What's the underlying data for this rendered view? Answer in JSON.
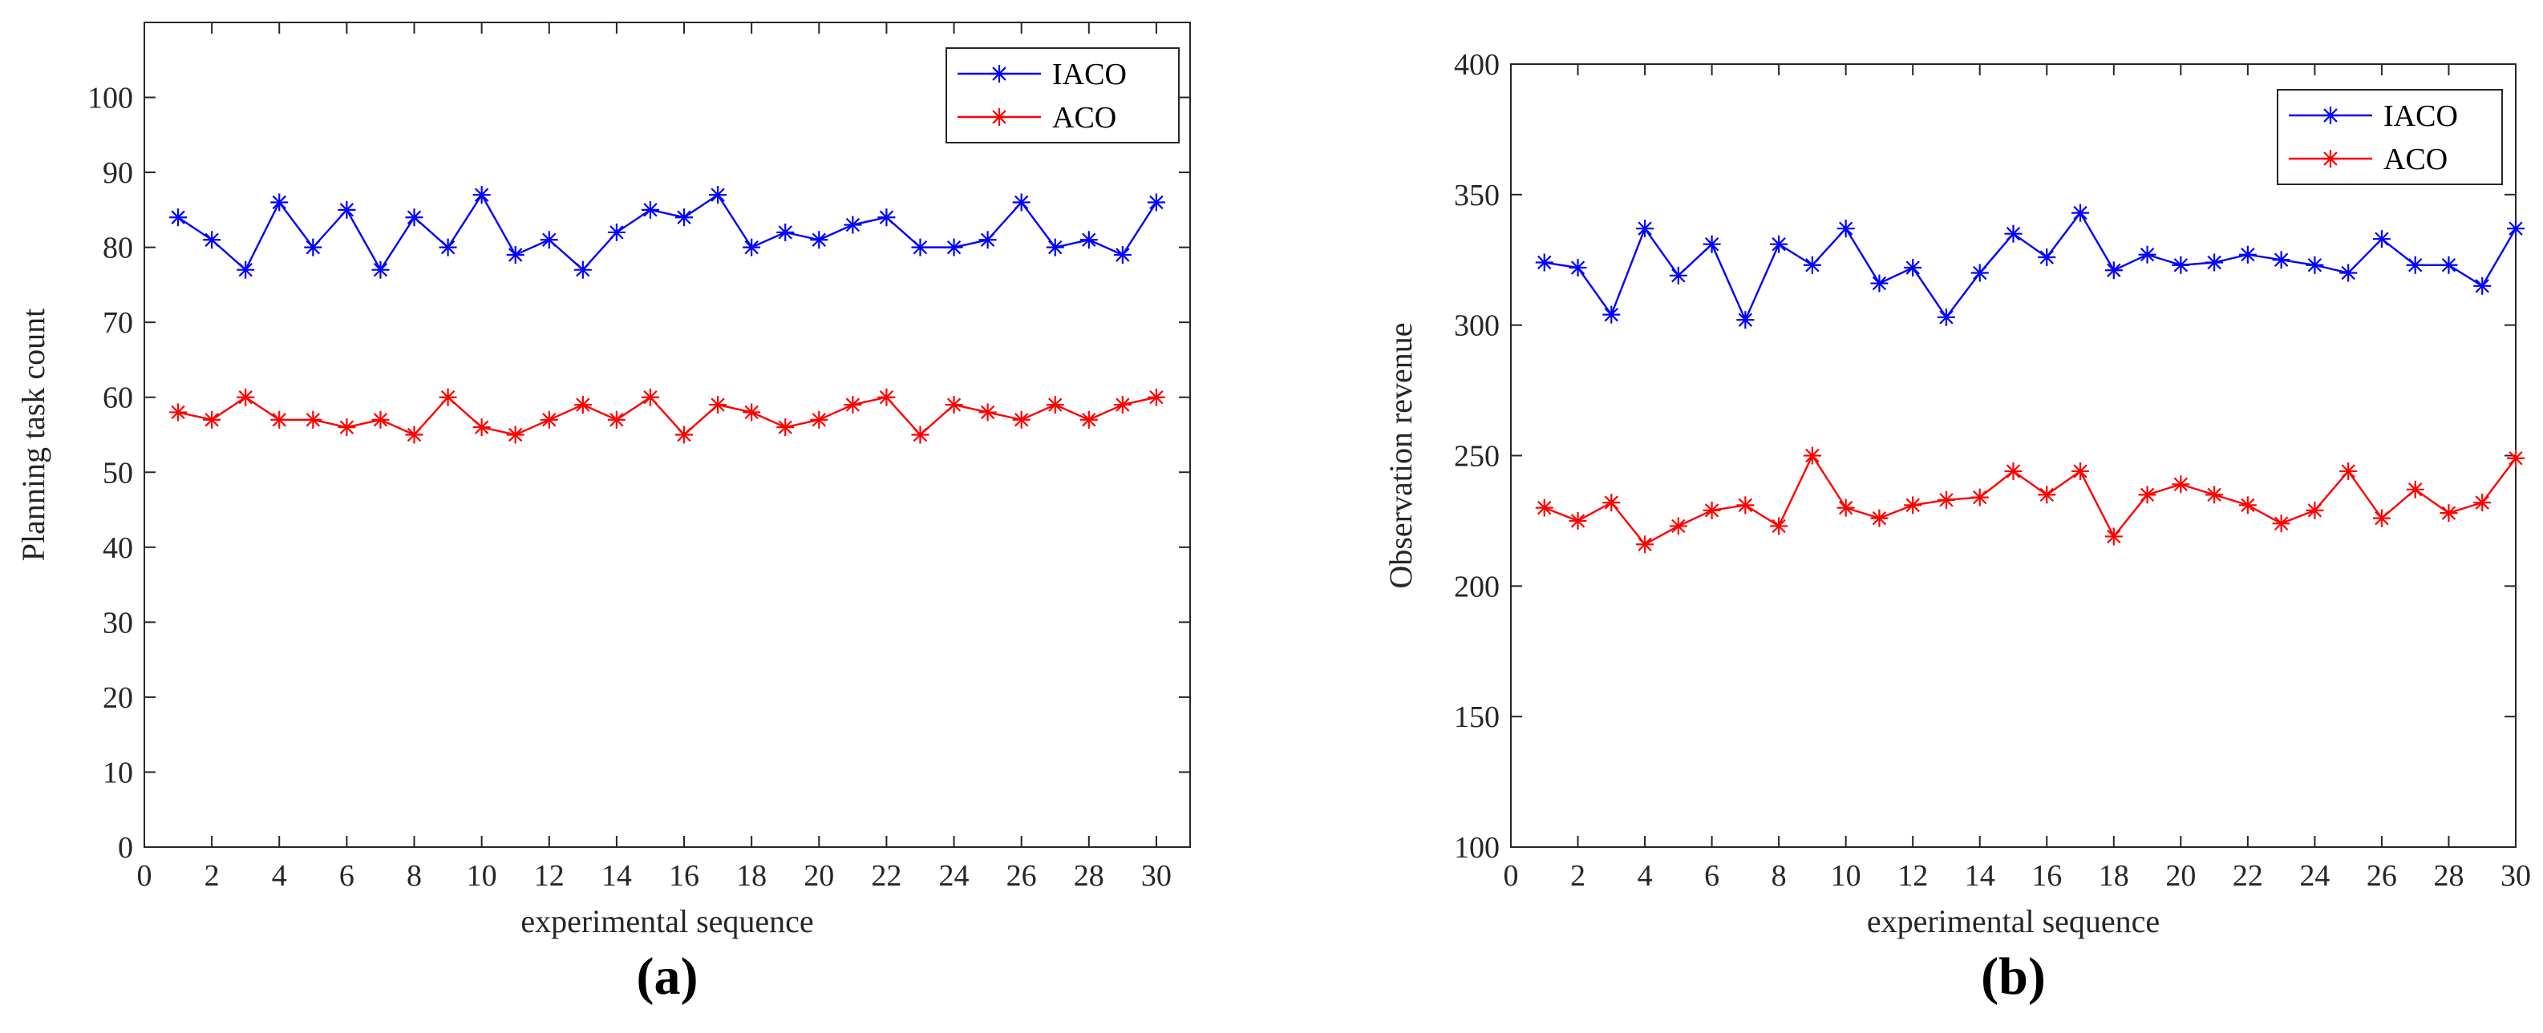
{
  "chart_data": [
    {
      "type": "line",
      "panel_label": "(a)",
      "xlabel": "experimental sequence",
      "ylabel": "Planning task count",
      "xlim": [
        0,
        31
      ],
      "ylim": [
        0,
        110
      ],
      "xticks": [
        0,
        2,
        4,
        6,
        8,
        10,
        12,
        14,
        16,
        18,
        20,
        22,
        24,
        26,
        28,
        30
      ],
      "yticks": [
        0,
        10,
        20,
        30,
        40,
        50,
        60,
        70,
        80,
        90,
        100
      ],
      "grid": false,
      "legend_position": "top-right",
      "x": [
        1,
        2,
        3,
        4,
        5,
        6,
        7,
        8,
        9,
        10,
        11,
        12,
        13,
        14,
        15,
        16,
        17,
        18,
        19,
        20,
        21,
        22,
        23,
        24,
        25,
        26,
        27,
        28,
        29,
        30
      ],
      "series": [
        {
          "name": "IACO",
          "color": "#0000ff",
          "marker": "asterisk",
          "values": [
            84,
            81,
            77,
            86,
            80,
            85,
            77,
            84,
            80,
            87,
            79,
            81,
            77,
            82,
            85,
            84,
            87,
            80,
            82,
            81,
            83,
            84,
            80,
            80,
            81,
            86,
            80,
            81,
            79,
            86
          ]
        },
        {
          "name": "ACO",
          "color": "#ff0000",
          "marker": "asterisk",
          "values": [
            58,
            57,
            60,
            57,
            57,
            56,
            57,
            55,
            60,
            56,
            55,
            57,
            59,
            57,
            60,
            55,
            59,
            58,
            56,
            57,
            59,
            60,
            55,
            59,
            58,
            57,
            59,
            57,
            59,
            60
          ]
        }
      ]
    },
    {
      "type": "line",
      "panel_label": "(b)",
      "xlabel": "experimental sequence",
      "ylabel": "Observation revenue",
      "xlim": [
        0,
        30
      ],
      "ylim": [
        100,
        400
      ],
      "xticks": [
        0,
        2,
        4,
        6,
        8,
        10,
        12,
        14,
        16,
        18,
        20,
        22,
        24,
        26,
        28,
        30
      ],
      "yticks": [
        100,
        150,
        200,
        250,
        300,
        350,
        400
      ],
      "grid": false,
      "legend_position": "top-right",
      "x": [
        1,
        2,
        3,
        4,
        5,
        6,
        7,
        8,
        9,
        10,
        11,
        12,
        13,
        14,
        15,
        16,
        17,
        18,
        19,
        20,
        21,
        22,
        23,
        24,
        25,
        26,
        27,
        28,
        29,
        30
      ],
      "series": [
        {
          "name": "IACO",
          "color": "#0000ff",
          "marker": "asterisk",
          "values": [
            324,
            322,
            304,
            337,
            319,
            331,
            302,
            331,
            323,
            337,
            316,
            322,
            303,
            320,
            335,
            326,
            343,
            321,
            327,
            323,
            324,
            327,
            325,
            323,
            320,
            333,
            323,
            323,
            315,
            337
          ]
        },
        {
          "name": "ACO",
          "color": "#ff0000",
          "marker": "asterisk",
          "values": [
            230,
            225,
            232,
            216,
            223,
            229,
            231,
            223,
            250,
            230,
            226,
            231,
            233,
            234,
            244,
            235,
            244,
            219,
            235,
            239,
            235,
            231,
            224,
            229,
            244,
            226,
            237,
            228,
            232,
            249
          ]
        }
      ]
    }
  ]
}
